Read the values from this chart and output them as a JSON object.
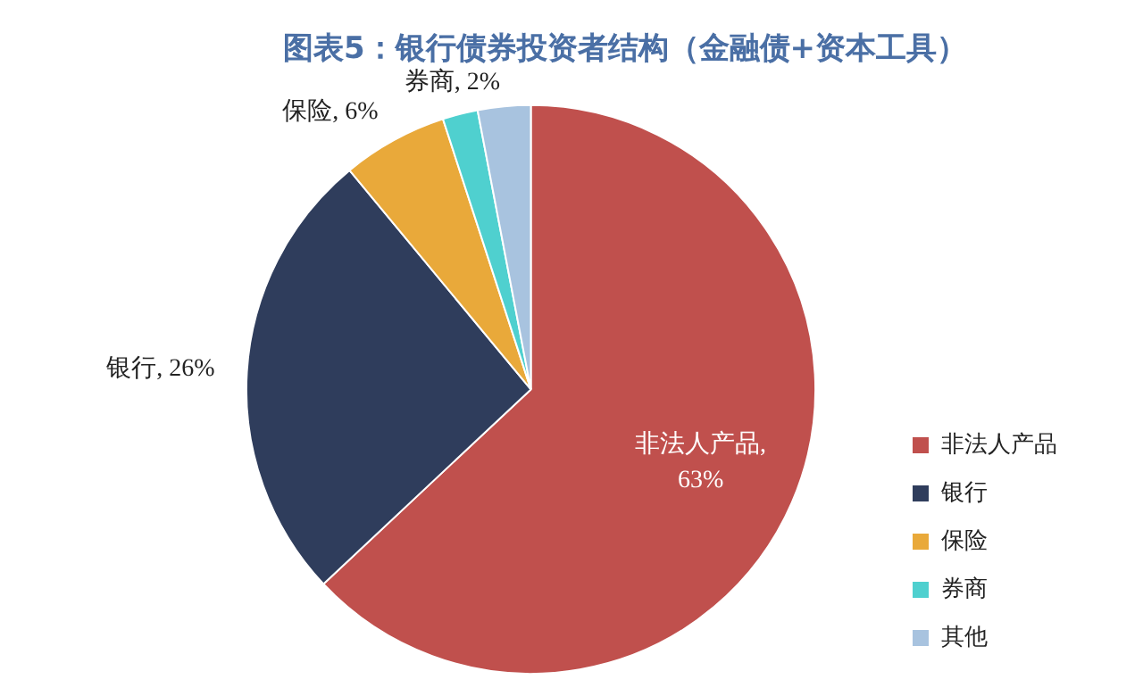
{
  "chart_data": {
    "type": "pie",
    "title": "图表5：银行债券投资者结构（金融债+资本工具）",
    "categories": [
      "非法人产品",
      "银行",
      "保险",
      "券商",
      "其他"
    ],
    "values": [
      63,
      26,
      6,
      2,
      3
    ],
    "colors": [
      "#c0504d",
      "#2f3d5c",
      "#e9a93a",
      "#4fd0cf",
      "#a8c3df"
    ],
    "value_labels": [
      "非法人产品, 63%",
      "银行, 26%",
      "保险, 6%",
      "券商, 2%",
      null
    ],
    "legend": "right"
  }
}
